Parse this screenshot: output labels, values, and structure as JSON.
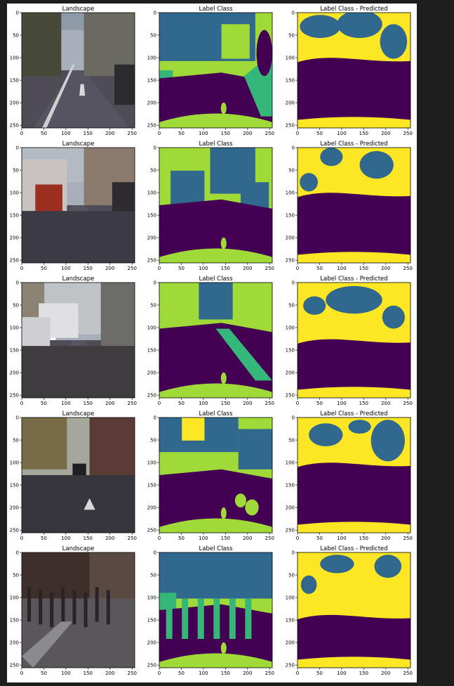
{
  "figure": {
    "background": "#ffffff",
    "page_background": "#1e1e1e",
    "colormap": {
      "dark_purple": "#440154",
      "teal": "#31688e",
      "green": "#35b779",
      "lime": "#a0da39",
      "yellow": "#fde725"
    }
  },
  "chart_data": {
    "type": "heatmap",
    "layout": "5 rows x 3 columns of image panels",
    "column_titles": [
      "Landscape",
      "Label Class",
      "Label Class - Predicted"
    ],
    "x_ticks": [
      "0",
      "50",
      "100",
      "150",
      "200",
      "250"
    ],
    "y_ticks": [
      "0",
      "50",
      "100",
      "150",
      "200",
      "250"
    ],
    "xlim": [
      0,
      256
    ],
    "ylim": [
      256,
      0
    ],
    "rows": [
      {
        "panels": [
          {
            "title": "Landscape",
            "kind": "photo",
            "scene": "straight road between trees and buildings"
          },
          {
            "title": "Label Class",
            "kind": "mask"
          },
          {
            "title": "Label Class - Predicted",
            "kind": "predicted"
          }
        ]
      },
      {
        "panels": [
          {
            "title": "Landscape",
            "kind": "photo",
            "scene": "street with red van and parked cars"
          },
          {
            "title": "Label Class",
            "kind": "mask"
          },
          {
            "title": "Label Class - Predicted",
            "kind": "predicted"
          }
        ]
      },
      {
        "panels": [
          {
            "title": "Landscape",
            "kind": "photo",
            "scene": "cobblestone road with white van"
          },
          {
            "title": "Label Class",
            "kind": "mask"
          },
          {
            "title": "Label Class - Predicted",
            "kind": "predicted"
          }
        ]
      },
      {
        "panels": [
          {
            "title": "Landscape",
            "kind": "photo",
            "scene": "tree-lined road with car ahead"
          },
          {
            "title": "Label Class",
            "kind": "mask"
          },
          {
            "title": "Label Class - Predicted",
            "kind": "predicted"
          }
        ]
      },
      {
        "panels": [
          {
            "title": "Landscape",
            "kind": "photo",
            "scene": "crosswalk with pedestrians"
          },
          {
            "title": "Label Class",
            "kind": "mask"
          },
          {
            "title": "Label Class - Predicted",
            "kind": "predicted"
          }
        ]
      }
    ]
  }
}
